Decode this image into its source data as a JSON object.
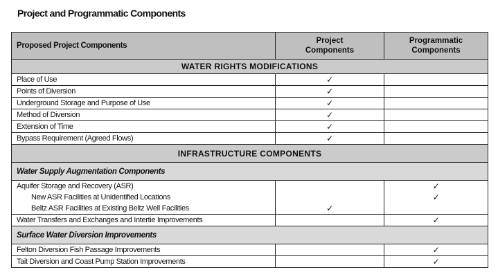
{
  "title": "Project and Programmatic Components",
  "headers": [
    "Proposed Project Components",
    "Project Components",
    "Programmatic Components"
  ],
  "check_icon": "check-icon",
  "check_glyph": "✓",
  "sections": {
    "water_rights": "WATER RIGHTS MODIFICATIONS",
    "infrastructure": "INFRASTRUCTURE COMPONENTS",
    "water_supply": "Water Supply Augmentation Components",
    "surface_water": "Surface Water Diversion Improvements"
  },
  "water_rights_rows": [
    {
      "label": "Place of Use",
      "project": true,
      "programmatic": false
    },
    {
      "label": "Points of Diversion",
      "project": true,
      "programmatic": false
    },
    {
      "label": "Underground Storage and Purpose of Use",
      "project": true,
      "programmatic": false
    },
    {
      "label": "Method of Diversion",
      "project": true,
      "programmatic": false
    },
    {
      "label": "Extension of Time",
      "project": true,
      "programmatic": false
    },
    {
      "label": "Bypass Requirement (Agreed Flows)",
      "project": true,
      "programmatic": false
    }
  ],
  "asr": {
    "label": "Aquifer Storage and Recovery (ASR)",
    "sub1": "New ASR Facilities at Unidentified Locations",
    "sub2": "Beltz ASR Facilities at Existing Beltz Well Facilities",
    "checks": {
      "asr": "programmatic",
      "sub1": "programmatic",
      "sub2": "project"
    }
  },
  "water_transfers": {
    "label": "Water Transfers and Exchanges and Intertie Improvements",
    "project": false,
    "programmatic": true
  },
  "surface_rows": [
    {
      "label": "Felton Diversion Fish Passage Improvements",
      "project": false,
      "programmatic": true
    },
    {
      "label": "Tait Diversion and Coast Pump Station Improvements",
      "project": false,
      "programmatic": true
    }
  ]
}
